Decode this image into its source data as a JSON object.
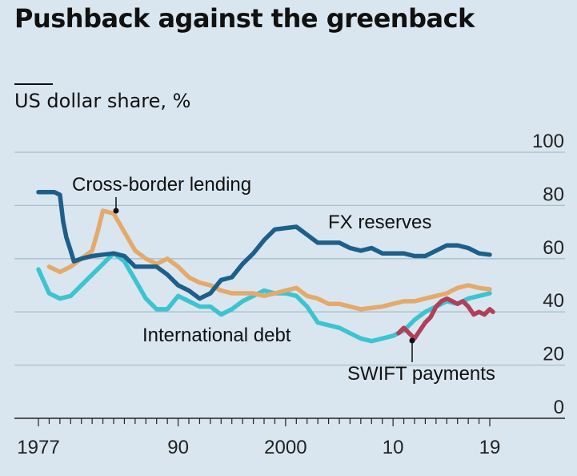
{
  "title": "Pushback against the greenback",
  "subtitle": "US dollar share, %",
  "chart_data": {
    "type": "line",
    "title": "Pushback against the greenback",
    "ylabel": "US dollar share, %",
    "ylim": [
      0,
      100
    ],
    "xlim": [
      1977,
      2023
    ],
    "yticks": [
      "100",
      "80",
      "60",
      "40",
      "20",
      "0"
    ],
    "xticks": [
      {
        "value": 1977,
        "label": "1977"
      },
      {
        "value": 1990,
        "label": "90"
      },
      {
        "value": 2000,
        "label": "2000"
      },
      {
        "value": 2010,
        "label": "10"
      },
      {
        "value": 2019,
        "label": "19"
      }
    ],
    "grid": true,
    "series": [
      {
        "name": "FX reserves",
        "color": "#1d5f8a",
        "points": [
          [
            1977,
            85
          ],
          [
            1978.5,
            85
          ],
          [
            1979,
            84
          ],
          [
            1979.3,
            74
          ],
          [
            1979.6,
            68
          ],
          [
            1980,
            63
          ],
          [
            1980.3,
            59
          ],
          [
            1981,
            60
          ],
          [
            1982,
            61
          ],
          [
            1983,
            61.5
          ],
          [
            1984,
            62
          ],
          [
            1985,
            61
          ],
          [
            1986,
            57
          ],
          [
            1987,
            57
          ],
          [
            1988,
            57
          ],
          [
            1989,
            54
          ],
          [
            1990,
            50
          ],
          [
            1991,
            48
          ],
          [
            1992,
            45
          ],
          [
            1993,
            47
          ],
          [
            1994,
            52
          ],
          [
            1995,
            53
          ],
          [
            1996,
            58
          ],
          [
            1997,
            62
          ],
          [
            1998,
            67
          ],
          [
            1999,
            71
          ],
          [
            2000,
            71.5
          ],
          [
            2001,
            72
          ],
          [
            2002,
            69
          ],
          [
            2003,
            66
          ],
          [
            2004,
            66
          ],
          [
            2005,
            66
          ],
          [
            2006,
            64
          ],
          [
            2007,
            63
          ],
          [
            2008,
            64
          ],
          [
            2009,
            62
          ],
          [
            2010,
            62
          ],
          [
            2011,
            62
          ],
          [
            2012,
            61
          ],
          [
            2013,
            61
          ],
          [
            2014,
            63
          ],
          [
            2015,
            65
          ],
          [
            2016,
            65
          ],
          [
            2017,
            64
          ],
          [
            2018,
            62
          ],
          [
            2019,
            61.5
          ]
        ]
      },
      {
        "name": "Cross-border lending",
        "color": "#e4aa6b",
        "points": [
          [
            1978,
            57
          ],
          [
            1979,
            55
          ],
          [
            1980,
            57
          ],
          [
            1981,
            60
          ],
          [
            1982,
            63
          ],
          [
            1982.5,
            70
          ],
          [
            1983,
            78
          ],
          [
            1984,
            77
          ],
          [
            1985,
            70
          ],
          [
            1986,
            63
          ],
          [
            1987,
            60
          ],
          [
            1988,
            58
          ],
          [
            1989,
            60
          ],
          [
            1990,
            57
          ],
          [
            1991,
            53
          ],
          [
            1992,
            51
          ],
          [
            1993,
            50
          ],
          [
            1994,
            48
          ],
          [
            1995,
            47
          ],
          [
            1996,
            47
          ],
          [
            1997,
            47
          ],
          [
            1998,
            46
          ],
          [
            1999,
            47
          ],
          [
            2000,
            48
          ],
          [
            2001,
            49
          ],
          [
            2002,
            46
          ],
          [
            2003,
            45
          ],
          [
            2004,
            43
          ],
          [
            2005,
            43
          ],
          [
            2006,
            42
          ],
          [
            2007,
            41
          ],
          [
            2008,
            41.5
          ],
          [
            2009,
            42
          ],
          [
            2010,
            43
          ],
          [
            2011,
            44
          ],
          [
            2012,
            44
          ],
          [
            2013,
            45
          ],
          [
            2014,
            46
          ],
          [
            2015,
            47
          ],
          [
            2016,
            49
          ],
          [
            2017,
            50
          ],
          [
            2018,
            49
          ],
          [
            2019,
            48.5
          ]
        ]
      },
      {
        "name": "International debt",
        "color": "#3cc4d0",
        "points": [
          [
            1977,
            56
          ],
          [
            1978,
            47
          ],
          [
            1979,
            45
          ],
          [
            1980,
            46
          ],
          [
            1981,
            50
          ],
          [
            1982,
            54
          ],
          [
            1983,
            58
          ],
          [
            1984,
            62
          ],
          [
            1985,
            59
          ],
          [
            1986,
            52
          ],
          [
            1987,
            45
          ],
          [
            1988,
            41
          ],
          [
            1989,
            41
          ],
          [
            1990,
            46
          ],
          [
            1991,
            44
          ],
          [
            1992,
            42
          ],
          [
            1993,
            42
          ],
          [
            1994,
            39
          ],
          [
            1995,
            41
          ],
          [
            1996,
            44
          ],
          [
            1997,
            46
          ],
          [
            1998,
            48
          ],
          [
            1999,
            47
          ],
          [
            2000,
            47
          ],
          [
            2001,
            46
          ],
          [
            2002,
            42
          ],
          [
            2003,
            36
          ],
          [
            2004,
            35
          ],
          [
            2005,
            34
          ],
          [
            2006,
            32
          ],
          [
            2007,
            30
          ],
          [
            2008,
            29
          ],
          [
            2009,
            30
          ],
          [
            2010,
            31
          ],
          [
            2011,
            33
          ],
          [
            2012,
            37
          ],
          [
            2013,
            40
          ],
          [
            2014,
            42
          ],
          [
            2015,
            44
          ],
          [
            2016,
            43
          ],
          [
            2017,
            45
          ],
          [
            2018,
            46
          ],
          [
            2019,
            47
          ]
        ]
      },
      {
        "name": "SWIFT payments",
        "color": "#b0405a",
        "points": [
          [
            2010.5,
            32
          ],
          [
            2011,
            34
          ],
          [
            2011.5,
            32
          ],
          [
            2012,
            30
          ],
          [
            2012.5,
            33
          ],
          [
            2013,
            36
          ],
          [
            2013.5,
            38
          ],
          [
            2014,
            42
          ],
          [
            2014.5,
            44
          ],
          [
            2015,
            45
          ],
          [
            2015.5,
            44
          ],
          [
            2016,
            43
          ],
          [
            2016.5,
            44
          ],
          [
            2017,
            42
          ],
          [
            2017.5,
            39
          ],
          [
            2018,
            40
          ],
          [
            2018.5,
            39
          ],
          [
            2019,
            41
          ],
          [
            2019.3,
            40
          ]
        ]
      }
    ],
    "annotations": [
      {
        "text": "Cross-border lending",
        "series": "Cross-border lending"
      },
      {
        "text": "FX reserves",
        "series": "FX reserves"
      },
      {
        "text": "International debt",
        "series": "International debt"
      },
      {
        "text": "SWIFT payments",
        "series": "SWIFT payments"
      }
    ]
  }
}
